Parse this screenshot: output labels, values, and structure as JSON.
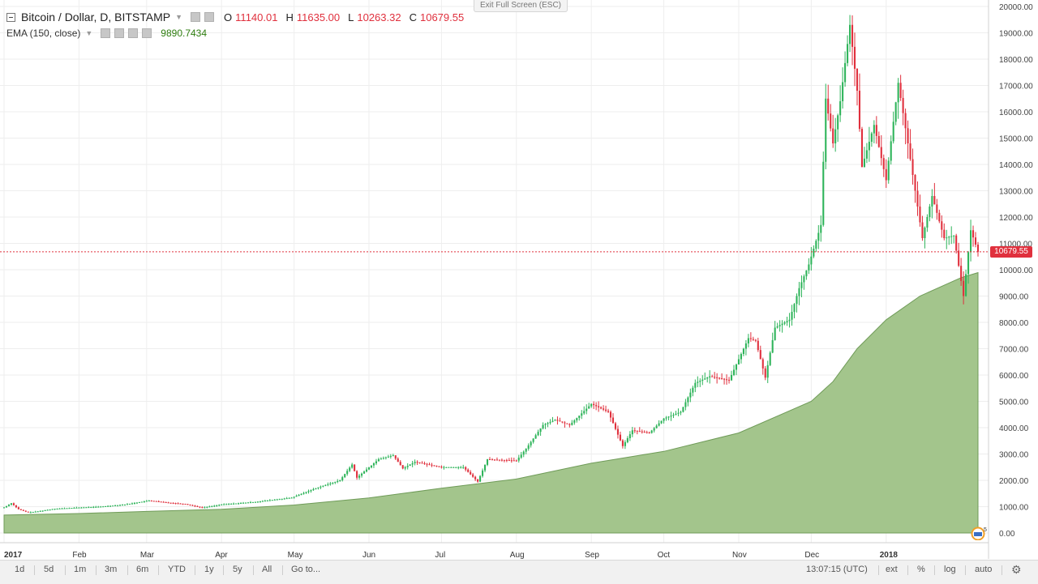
{
  "header": {
    "symbol": "Bitcoin / Dollar, D, BITSTAMP",
    "ohlc": [
      {
        "label": "O",
        "value": "11140.01"
      },
      {
        "label": "H",
        "value": "11635.00"
      },
      {
        "label": "L",
        "value": "10263.32"
      },
      {
        "label": "C",
        "value": "10679.55"
      }
    ],
    "indicator": "EMA (150, close)",
    "indicator_value": "9890.7434",
    "exit_fullscreen": "Exit Full Screen (ESC)"
  },
  "price_tag": "10679.55",
  "bottom_bar": {
    "ranges": [
      "1d",
      "5d",
      "1m",
      "3m",
      "6m",
      "YTD",
      "1y",
      "5y",
      "All",
      "Go to..."
    ],
    "time": "13:07:15 (UTC)",
    "options": [
      "ext",
      "%",
      "log",
      "auto"
    ]
  },
  "colors": {
    "up": "#2eb45a",
    "down": "#e0303d",
    "ema_fill": "#a3c58c",
    "ema_line": "#6f9b58",
    "price_line": "#e0303d"
  },
  "chart_data": {
    "type": "candlestick",
    "ylim": [
      0,
      20000
    ],
    "y_ticks": [
      "20000.00",
      "19000.00",
      "18000.00",
      "17000.00",
      "16000.00",
      "15000.00",
      "14000.00",
      "13000.00",
      "12000.00",
      "11000.00",
      "10000.00",
      "9000.00",
      "8000.00",
      "7000.00",
      "6000.00",
      "5000.00",
      "4000.00",
      "3000.00",
      "2000.00",
      "1000.00",
      "0.00"
    ],
    "x_ticks": [
      "2017",
      "Feb",
      "Mar",
      "Apr",
      "May",
      "Jun",
      "Jul",
      "Aug",
      "Sep",
      "Oct",
      "Nov",
      "Dec",
      "2018"
    ],
    "x_range": [
      "2017-01-01",
      "2018-02-08"
    ],
    "last_close": 10679.55,
    "price_series": [
      [
        "2017-01-01",
        970
      ],
      [
        "2017-01-04",
        1130
      ],
      [
        "2017-01-07",
        900
      ],
      [
        "2017-01-11",
        780
      ],
      [
        "2017-01-15",
        820
      ],
      [
        "2017-01-22",
        920
      ],
      [
        "2017-01-31",
        960
      ],
      [
        "2017-02-10",
        1000
      ],
      [
        "2017-02-20",
        1080
      ],
      [
        "2017-03-02",
        1230
      ],
      [
        "2017-03-10",
        1150
      ],
      [
        "2017-03-17",
        1100
      ],
      [
        "2017-03-24",
        960
      ],
      [
        "2017-04-01",
        1080
      ],
      [
        "2017-04-15",
        1180
      ],
      [
        "2017-04-30",
        1340
      ],
      [
        "2017-05-10",
        1700
      ],
      [
        "2017-05-20",
        2000
      ],
      [
        "2017-05-25",
        2600
      ],
      [
        "2017-05-27",
        2100
      ],
      [
        "2017-06-05",
        2800
      ],
      [
        "2017-06-11",
        2950
      ],
      [
        "2017-06-15",
        2450
      ],
      [
        "2017-06-20",
        2700
      ],
      [
        "2017-07-01",
        2500
      ],
      [
        "2017-07-10",
        2500
      ],
      [
        "2017-07-16",
        1950
      ],
      [
        "2017-07-20",
        2800
      ],
      [
        "2017-08-01",
        2750
      ],
      [
        "2017-08-05",
        3200
      ],
      [
        "2017-08-12",
        4100
      ],
      [
        "2017-08-17",
        4300
      ],
      [
        "2017-08-23",
        4100
      ],
      [
        "2017-09-01",
        4900
      ],
      [
        "2017-09-08",
        4600
      ],
      [
        "2017-09-14",
        3300
      ],
      [
        "2017-09-18",
        3900
      ],
      [
        "2017-09-25",
        3800
      ],
      [
        "2017-10-01",
        4350
      ],
      [
        "2017-10-08",
        4600
      ],
      [
        "2017-10-14",
        5700
      ],
      [
        "2017-10-20",
        5950
      ],
      [
        "2017-10-28",
        5800
      ],
      [
        "2017-11-05",
        7400
      ],
      [
        "2017-11-08",
        7300
      ],
      [
        "2017-11-12",
        5900
      ],
      [
        "2017-11-16",
        7800
      ],
      [
        "2017-11-22",
        8100
      ],
      [
        "2017-11-26",
        9300
      ],
      [
        "2017-11-30",
        10200
      ],
      [
        "2017-12-05",
        11700
      ],
      [
        "2017-12-07",
        16500
      ],
      [
        "2017-12-10",
        14800
      ],
      [
        "2017-12-13",
        16400
      ],
      [
        "2017-12-17",
        19300
      ],
      [
        "2017-12-20",
        16800
      ],
      [
        "2017-12-22",
        13900
      ],
      [
        "2017-12-27",
        15500
      ],
      [
        "2018-01-01",
        13400
      ],
      [
        "2018-01-06",
        17100
      ],
      [
        "2018-01-10",
        14800
      ],
      [
        "2018-01-16",
        11200
      ],
      [
        "2018-01-20",
        12800
      ],
      [
        "2018-01-25",
        11200
      ],
      [
        "2018-01-29",
        11300
      ],
      [
        "2018-02-02",
        9000
      ],
      [
        "2018-02-05",
        11500
      ],
      [
        "2018-02-08",
        10680
      ]
    ],
    "ema_series": [
      [
        "2017-01-01",
        680
      ],
      [
        "2017-02-01",
        740
      ],
      [
        "2017-03-01",
        820
      ],
      [
        "2017-04-01",
        900
      ],
      [
        "2017-05-01",
        1060
      ],
      [
        "2017-06-01",
        1330
      ],
      [
        "2017-07-01",
        1700
      ],
      [
        "2017-08-01",
        2050
      ],
      [
        "2017-09-01",
        2650
      ],
      [
        "2017-10-01",
        3100
      ],
      [
        "2017-11-01",
        3800
      ],
      [
        "2017-12-01",
        5000
      ],
      [
        "2017-12-10",
        5750
      ],
      [
        "2017-12-20",
        7000
      ],
      [
        "2018-01-01",
        8100
      ],
      [
        "2018-01-15",
        9000
      ],
      [
        "2018-02-01",
        9700
      ],
      [
        "2018-02-08",
        9890
      ]
    ]
  }
}
